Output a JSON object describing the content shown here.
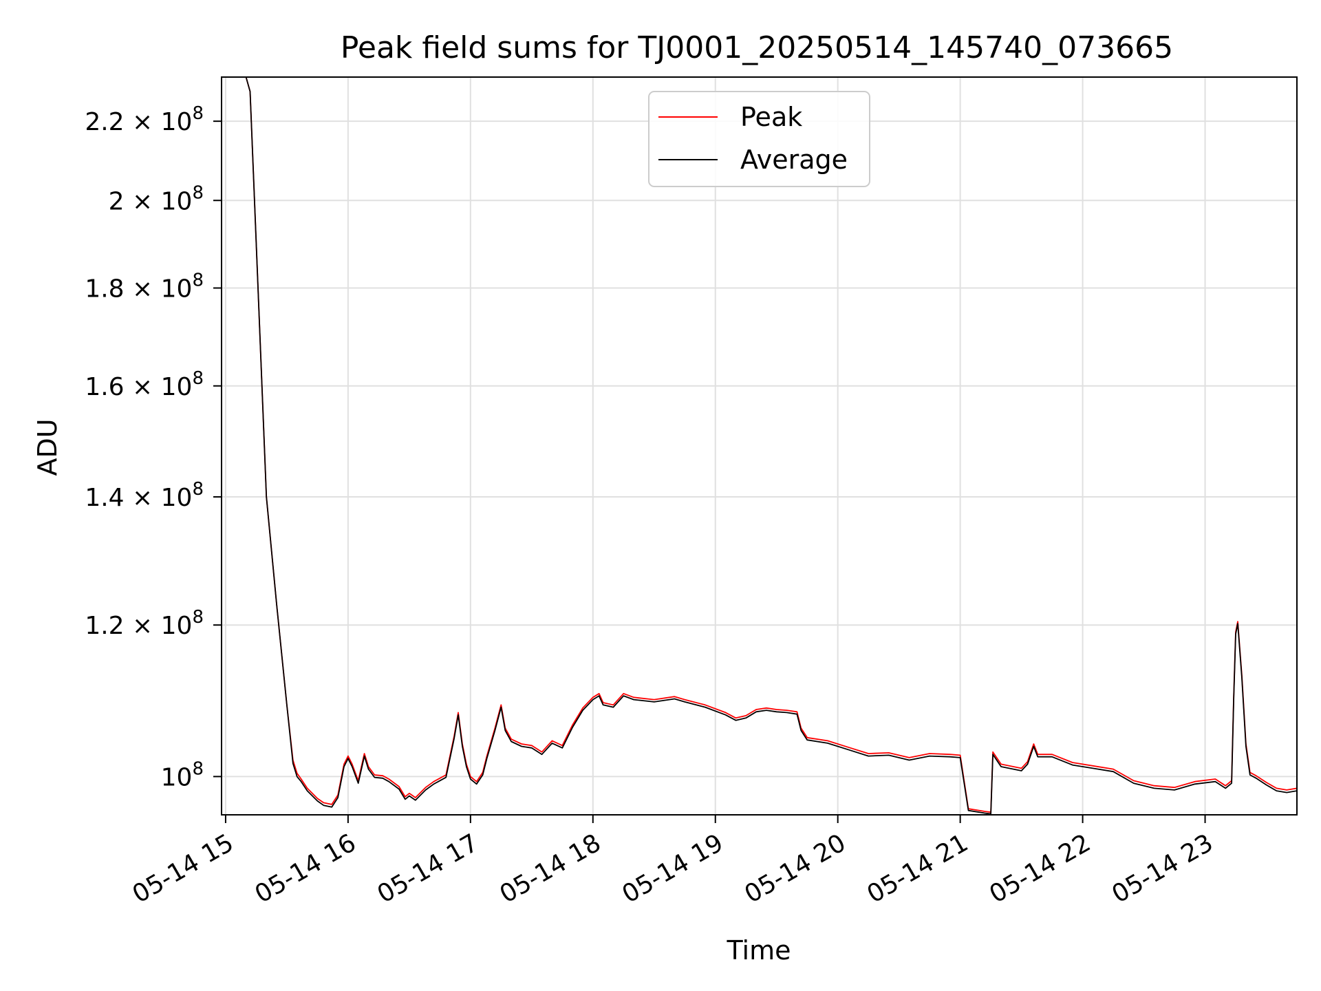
{
  "chart_data": {
    "type": "line",
    "title": "Peak field sums for TJ0001_20250514_145740_073665",
    "xlabel": "Time",
    "ylabel": "ADU",
    "y_scale": "log",
    "grid": true,
    "legend_position": "top-center",
    "xlim": [
      "2025-05-14 14:58",
      "2025-05-14 23:45"
    ],
    "ylim": [
      95500000,
      232000000
    ],
    "x_ticks": [
      {
        "value": "2025-05-14 15:00",
        "label": "05-14 15"
      },
      {
        "value": "2025-05-14 16:00",
        "label": "05-14 16"
      },
      {
        "value": "2025-05-14 17:00",
        "label": "05-14 17"
      },
      {
        "value": "2025-05-14 18:00",
        "label": "05-14 18"
      },
      {
        "value": "2025-05-14 19:00",
        "label": "05-14 19"
      },
      {
        "value": "2025-05-14 20:00",
        "label": "05-14 20"
      },
      {
        "value": "2025-05-14 21:00",
        "label": "05-14 21"
      },
      {
        "value": "2025-05-14 22:00",
        "label": "05-14 22"
      },
      {
        "value": "2025-05-14 23:00",
        "label": "05-14 23"
      }
    ],
    "y_ticks": [
      {
        "value": 100000000,
        "mantissa": "",
        "exponent": "8"
      },
      {
        "value": 120000000,
        "mantissa": "1.2",
        "exponent": "8"
      },
      {
        "value": 140000000,
        "mantissa": "1.4",
        "exponent": "8"
      },
      {
        "value": 160000000,
        "mantissa": "1.6",
        "exponent": "8"
      },
      {
        "value": 180000000,
        "mantissa": "1.8",
        "exponent": "8"
      },
      {
        "value": 200000000,
        "mantissa": "2",
        "exponent": "8"
      },
      {
        "value": 220000000,
        "mantissa": "2.2",
        "exponent": "8"
      }
    ],
    "series": [
      {
        "name": "Peak",
        "color": "#ff0000",
        "points": [
          [
            "2025-05-14 15:10",
            232000000
          ],
          [
            "2025-05-14 15:12",
            228000000
          ],
          [
            "2025-05-14 15:15",
            190000000
          ],
          [
            "2025-05-14 15:20",
            140000000
          ],
          [
            "2025-05-14 15:25",
            123000000
          ],
          [
            "2025-05-14 15:30",
            109000000
          ],
          [
            "2025-05-14 15:33",
            102000000
          ],
          [
            "2025-05-14 15:35",
            100400000
          ],
          [
            "2025-05-14 15:37",
            99700000
          ],
          [
            "2025-05-14 15:40",
            98600000
          ],
          [
            "2025-05-14 15:45",
            97400000
          ],
          [
            "2025-05-14 15:48",
            96900000
          ],
          [
            "2025-05-14 15:52",
            96700000
          ],
          [
            "2025-05-14 15:55",
            97800000
          ],
          [
            "2025-05-14 15:58",
            101500000
          ],
          [
            "2025-05-14 16:00",
            102500000
          ],
          [
            "2025-05-14 16:02",
            101500000
          ],
          [
            "2025-05-14 16:05",
            99500000
          ],
          [
            "2025-05-14 16:08",
            102800000
          ],
          [
            "2025-05-14 16:10",
            101200000
          ],
          [
            "2025-05-14 16:13",
            100200000
          ],
          [
            "2025-05-14 16:17",
            100100000
          ],
          [
            "2025-05-14 16:20",
            99700000
          ],
          [
            "2025-05-14 16:25",
            98800000
          ],
          [
            "2025-05-14 16:28",
            97600000
          ],
          [
            "2025-05-14 16:30",
            98000000
          ],
          [
            "2025-05-14 16:33",
            97500000
          ],
          [
            "2025-05-14 16:38",
            98700000
          ],
          [
            "2025-05-14 16:42",
            99400000
          ],
          [
            "2025-05-14 16:48",
            100200000
          ],
          [
            "2025-05-14 16:52",
            105000000
          ],
          [
            "2025-05-14 16:54",
            108000000
          ],
          [
            "2025-05-14 16:56",
            104000000
          ],
          [
            "2025-05-14 16:58",
            101500000
          ],
          [
            "2025-05-14 17:00",
            100000000
          ],
          [
            "2025-05-14 17:03",
            99400000
          ],
          [
            "2025-05-14 17:06",
            100500000
          ],
          [
            "2025-05-14 17:08",
            102500000
          ],
          [
            "2025-05-14 17:12",
            106000000
          ],
          [
            "2025-05-14 17:15",
            109000000
          ],
          [
            "2025-05-14 17:17",
            106000000
          ],
          [
            "2025-05-14 17:20",
            104600000
          ],
          [
            "2025-05-14 17:25",
            104000000
          ],
          [
            "2025-05-14 17:30",
            103800000
          ],
          [
            "2025-05-14 17:35",
            103000000
          ],
          [
            "2025-05-14 17:40",
            104400000
          ],
          [
            "2025-05-14 17:45",
            103800000
          ],
          [
            "2025-05-14 17:50",
            106400000
          ],
          [
            "2025-05-14 17:55",
            108600000
          ],
          [
            "2025-05-14 18:00",
            110000000
          ],
          [
            "2025-05-14 18:03",
            110500000
          ],
          [
            "2025-05-14 18:05",
            109300000
          ],
          [
            "2025-05-14 18:10",
            109000000
          ],
          [
            "2025-05-14 18:15",
            110500000
          ],
          [
            "2025-05-14 18:20",
            110000000
          ],
          [
            "2025-05-14 18:30",
            109700000
          ],
          [
            "2025-05-14 18:40",
            110100000
          ],
          [
            "2025-05-14 18:45",
            109700000
          ],
          [
            "2025-05-14 18:55",
            109000000
          ],
          [
            "2025-05-14 19:05",
            108000000
          ],
          [
            "2025-05-14 19:10",
            107300000
          ],
          [
            "2025-05-14 19:15",
            107600000
          ],
          [
            "2025-05-14 19:20",
            108400000
          ],
          [
            "2025-05-14 19:25",
            108600000
          ],
          [
            "2025-05-14 19:30",
            108400000
          ],
          [
            "2025-05-14 19:35",
            108300000
          ],
          [
            "2025-05-14 19:40",
            108100000
          ],
          [
            "2025-05-14 19:42",
            106000000
          ],
          [
            "2025-05-14 19:45",
            104800000
          ],
          [
            "2025-05-14 19:55",
            104400000
          ],
          [
            "2025-05-14 20:05",
            103600000
          ],
          [
            "2025-05-14 20:15",
            102800000
          ],
          [
            "2025-05-14 20:25",
            102900000
          ],
          [
            "2025-05-14 20:35",
            102300000
          ],
          [
            "2025-05-14 20:45",
            102800000
          ],
          [
            "2025-05-14 20:55",
            102700000
          ],
          [
            "2025-05-14 21:00",
            102600000
          ],
          [
            "2025-05-14 21:04",
            96200000
          ],
          [
            "2025-05-14 21:12",
            95900000
          ],
          [
            "2025-05-14 21:15",
            95800000
          ],
          [
            "2025-05-14 21:16",
            103000000
          ],
          [
            "2025-05-14 21:20",
            101500000
          ],
          [
            "2025-05-14 21:30",
            101000000
          ],
          [
            "2025-05-14 21:33",
            101800000
          ],
          [
            "2025-05-14 21:36",
            104000000
          ],
          [
            "2025-05-14 21:38",
            102700000
          ],
          [
            "2025-05-14 21:45",
            102700000
          ],
          [
            "2025-05-14 21:55",
            101700000
          ],
          [
            "2025-05-14 22:05",
            101300000
          ],
          [
            "2025-05-14 22:15",
            100900000
          ],
          [
            "2025-05-14 22:25",
            99500000
          ],
          [
            "2025-05-14 22:35",
            98900000
          ],
          [
            "2025-05-14 22:45",
            98700000
          ],
          [
            "2025-05-14 22:55",
            99400000
          ],
          [
            "2025-05-14 23:05",
            99700000
          ],
          [
            "2025-05-14 23:10",
            98900000
          ],
          [
            "2025-05-14 23:13",
            99500000
          ],
          [
            "2025-05-14 23:14",
            110000000
          ],
          [
            "2025-05-14 23:15",
            119000000
          ],
          [
            "2025-05-14 23:16",
            120500000
          ],
          [
            "2025-05-14 23:18",
            113000000
          ],
          [
            "2025-05-14 23:20",
            104000000
          ],
          [
            "2025-05-14 23:22",
            100500000
          ],
          [
            "2025-05-14 23:25",
            100100000
          ],
          [
            "2025-05-14 23:30",
            99300000
          ],
          [
            "2025-05-14 23:35",
            98600000
          ],
          [
            "2025-05-14 23:40",
            98400000
          ],
          [
            "2025-05-14 23:45",
            98600000
          ]
        ]
      },
      {
        "name": "Average",
        "color": "#000000",
        "points": [
          [
            "2025-05-14 15:10",
            232000000
          ],
          [
            "2025-05-14 15:12",
            228000000
          ],
          [
            "2025-05-14 15:15",
            190000000
          ],
          [
            "2025-05-14 15:20",
            140000000
          ],
          [
            "2025-05-14 15:25",
            123000000
          ],
          [
            "2025-05-14 15:30",
            109000000
          ],
          [
            "2025-05-14 15:33",
            101600000
          ],
          [
            "2025-05-14 15:35",
            100000000
          ],
          [
            "2025-05-14 15:37",
            99400000
          ],
          [
            "2025-05-14 15:40",
            98300000
          ],
          [
            "2025-05-14 15:45",
            97100000
          ],
          [
            "2025-05-14 15:48",
            96600000
          ],
          [
            "2025-05-14 15:52",
            96400000
          ],
          [
            "2025-05-14 15:55",
            97500000
          ],
          [
            "2025-05-14 15:58",
            101200000
          ],
          [
            "2025-05-14 16:00",
            102200000
          ],
          [
            "2025-05-14 16:02",
            101200000
          ],
          [
            "2025-05-14 16:05",
            99200000
          ],
          [
            "2025-05-14 16:08",
            102500000
          ],
          [
            "2025-05-14 16:10",
            100900000
          ],
          [
            "2025-05-14 16:13",
            99900000
          ],
          [
            "2025-05-14 16:17",
            99800000
          ],
          [
            "2025-05-14 16:20",
            99400000
          ],
          [
            "2025-05-14 16:25",
            98500000
          ],
          [
            "2025-05-14 16:28",
            97300000
          ],
          [
            "2025-05-14 16:30",
            97700000
          ],
          [
            "2025-05-14 16:33",
            97200000
          ],
          [
            "2025-05-14 16:38",
            98400000
          ],
          [
            "2025-05-14 16:42",
            99100000
          ],
          [
            "2025-05-14 16:48",
            99900000
          ],
          [
            "2025-05-14 16:52",
            104700000
          ],
          [
            "2025-05-14 16:54",
            107700000
          ],
          [
            "2025-05-14 16:56",
            103700000
          ],
          [
            "2025-05-14 16:58",
            101200000
          ],
          [
            "2025-05-14 17:00",
            99700000
          ],
          [
            "2025-05-14 17:03",
            99100000
          ],
          [
            "2025-05-14 17:06",
            100200000
          ],
          [
            "2025-05-14 17:08",
            102200000
          ],
          [
            "2025-05-14 17:12",
            105700000
          ],
          [
            "2025-05-14 17:15",
            108700000
          ],
          [
            "2025-05-14 17:17",
            105700000
          ],
          [
            "2025-05-14 17:20",
            104300000
          ],
          [
            "2025-05-14 17:25",
            103700000
          ],
          [
            "2025-05-14 17:30",
            103500000
          ],
          [
            "2025-05-14 17:35",
            102700000
          ],
          [
            "2025-05-14 17:40",
            104100000
          ],
          [
            "2025-05-14 17:45",
            103500000
          ],
          [
            "2025-05-14 17:50",
            106100000
          ],
          [
            "2025-05-14 17:55",
            108300000
          ],
          [
            "2025-05-14 18:00",
            109700000
          ],
          [
            "2025-05-14 18:03",
            110200000
          ],
          [
            "2025-05-14 18:05",
            109000000
          ],
          [
            "2025-05-14 18:10",
            108700000
          ],
          [
            "2025-05-14 18:15",
            110200000
          ],
          [
            "2025-05-14 18:20",
            109700000
          ],
          [
            "2025-05-14 18:30",
            109400000
          ],
          [
            "2025-05-14 18:40",
            109800000
          ],
          [
            "2025-05-14 18:45",
            109400000
          ],
          [
            "2025-05-14 18:55",
            108700000
          ],
          [
            "2025-05-14 19:05",
            107700000
          ],
          [
            "2025-05-14 19:10",
            107000000
          ],
          [
            "2025-05-14 19:15",
            107300000
          ],
          [
            "2025-05-14 19:20",
            108100000
          ],
          [
            "2025-05-14 19:25",
            108300000
          ],
          [
            "2025-05-14 19:30",
            108100000
          ],
          [
            "2025-05-14 19:35",
            108000000
          ],
          [
            "2025-05-14 19:40",
            107800000
          ],
          [
            "2025-05-14 19:42",
            105700000
          ],
          [
            "2025-05-14 19:45",
            104500000
          ],
          [
            "2025-05-14 19:55",
            104100000
          ],
          [
            "2025-05-14 20:05",
            103300000
          ],
          [
            "2025-05-14 20:15",
            102500000
          ],
          [
            "2025-05-14 20:25",
            102600000
          ],
          [
            "2025-05-14 20:35",
            102000000
          ],
          [
            "2025-05-14 20:45",
            102500000
          ],
          [
            "2025-05-14 20:55",
            102400000
          ],
          [
            "2025-05-14 21:00",
            102300000
          ],
          [
            "2025-05-14 21:04",
            96000000
          ],
          [
            "2025-05-14 21:12",
            95700000
          ],
          [
            "2025-05-14 21:15",
            95600000
          ],
          [
            "2025-05-14 21:16",
            102700000
          ],
          [
            "2025-05-14 21:20",
            101200000
          ],
          [
            "2025-05-14 21:30",
            100700000
          ],
          [
            "2025-05-14 21:33",
            101500000
          ],
          [
            "2025-05-14 21:36",
            103700000
          ],
          [
            "2025-05-14 21:38",
            102400000
          ],
          [
            "2025-05-14 21:45",
            102400000
          ],
          [
            "2025-05-14 21:55",
            101400000
          ],
          [
            "2025-05-14 22:05",
            101000000
          ],
          [
            "2025-05-14 22:15",
            100600000
          ],
          [
            "2025-05-14 22:25",
            99200000
          ],
          [
            "2025-05-14 22:35",
            98600000
          ],
          [
            "2025-05-14 22:45",
            98400000
          ],
          [
            "2025-05-14 22:55",
            99100000
          ],
          [
            "2025-05-14 23:05",
            99400000
          ],
          [
            "2025-05-14 23:10",
            98600000
          ],
          [
            "2025-05-14 23:13",
            99200000
          ],
          [
            "2025-05-14 23:14",
            109700000
          ],
          [
            "2025-05-14 23:15",
            118700000
          ],
          [
            "2025-05-14 23:16",
            120200000
          ],
          [
            "2025-05-14 23:18",
            112700000
          ],
          [
            "2025-05-14 23:20",
            103700000
          ],
          [
            "2025-05-14 23:22",
            100200000
          ],
          [
            "2025-05-14 23:25",
            99800000
          ],
          [
            "2025-05-14 23:30",
            99000000
          ],
          [
            "2025-05-14 23:35",
            98300000
          ],
          [
            "2025-05-14 23:40",
            98100000
          ],
          [
            "2025-05-14 23:45",
            98300000
          ]
        ]
      }
    ]
  }
}
